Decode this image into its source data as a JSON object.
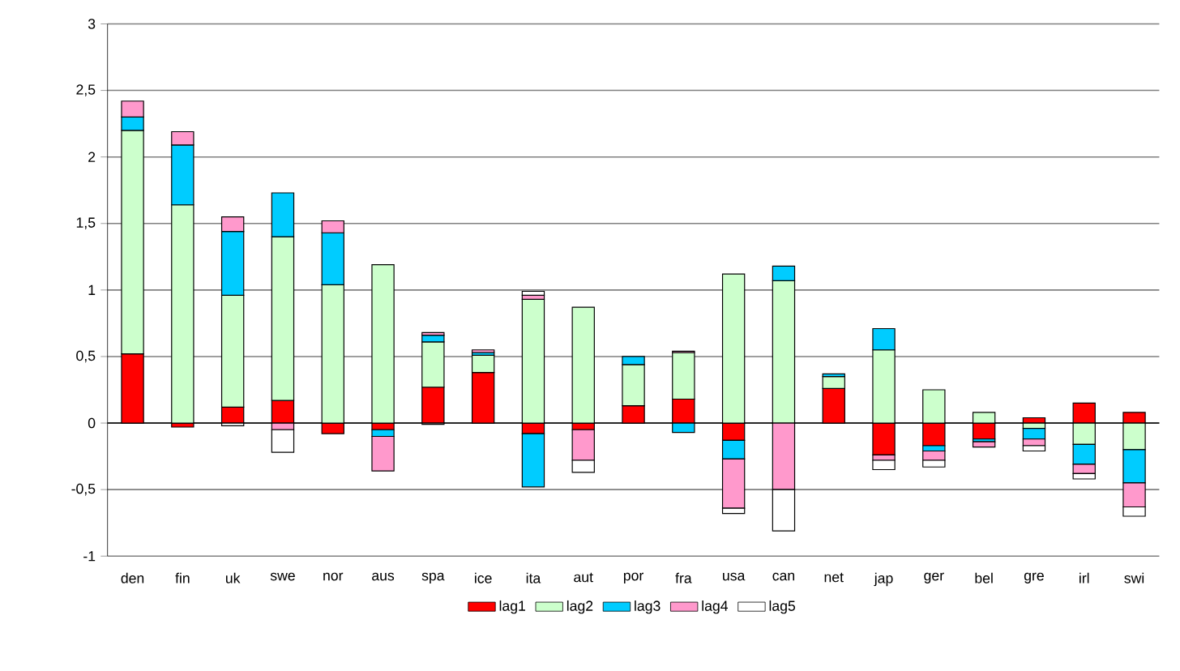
{
  "chart_data": {
    "type": "bar",
    "stacked": true,
    "categories": [
      "den",
      "fin",
      "uk",
      "swe",
      "nor",
      "aus",
      "spa",
      "ice",
      "ita",
      "aut",
      "por",
      "fra",
      "usa",
      "can",
      "net",
      "jap",
      "ger",
      "bel",
      "gre",
      "irl",
      "swi"
    ],
    "series": [
      {
        "name": "lag1",
        "color": "#ff0000",
        "values": [
          0.52,
          -0.03,
          0.12,
          0.17,
          -0.08,
          -0.05,
          0.27,
          0.38,
          -0.08,
          -0.05,
          0.13,
          0.18,
          -0.13,
          null,
          0.26,
          -0.24,
          -0.17,
          -0.12,
          0.04,
          0.15,
          0.08
        ]
      },
      {
        "name": "lag2",
        "color": "#ccffcc",
        "values": [
          1.68,
          1.64,
          0.84,
          1.23,
          1.04,
          1.19,
          0.34,
          0.13,
          0.93,
          0.87,
          0.31,
          0.35,
          1.12,
          1.07,
          0.09,
          0.55,
          0.25,
          0.08,
          -0.04,
          -0.16,
          -0.2
        ]
      },
      {
        "name": "lag3",
        "color": "#00ccff",
        "values": [
          0.1,
          0.45,
          0.48,
          0.33,
          0.39,
          -0.05,
          0.05,
          0.02,
          -0.4,
          null,
          0.06,
          -0.07,
          -0.14,
          0.11,
          0.02,
          0.16,
          -0.04,
          -0.02,
          -0.08,
          -0.15,
          -0.25
        ]
      },
      {
        "name": "lag4",
        "color": "#ff99cc",
        "values": [
          0.12,
          0.1,
          0.11,
          -0.05,
          0.09,
          -0.26,
          0.02,
          0.02,
          0.03,
          -0.23,
          null,
          0.01,
          -0.37,
          -0.5,
          null,
          -0.04,
          -0.07,
          -0.04,
          -0.05,
          -0.07,
          -0.18
        ]
      },
      {
        "name": "lag5",
        "color": "#ffffff",
        "values": [
          null,
          null,
          -0.02,
          -0.17,
          null,
          null,
          -0.01,
          null,
          0.03,
          -0.09,
          null,
          null,
          -0.04,
          -0.31,
          null,
          -0.07,
          -0.05,
          null,
          -0.04,
          -0.04,
          -0.07
        ]
      }
    ],
    "ylim": [
      -1,
      3
    ],
    "yticks": [
      {
        "value": -1,
        "label": "-1"
      },
      {
        "value": -0.5,
        "label": "-0,5"
      },
      {
        "value": 0,
        "label": "0"
      },
      {
        "value": 0.5,
        "label": "0,5"
      },
      {
        "value": 1,
        "label": "1"
      },
      {
        "value": 1.5,
        "label": "1,5"
      },
      {
        "value": 2,
        "label": "2"
      },
      {
        "value": 2.5,
        "label": "2,5"
      },
      {
        "value": 3,
        "label": "3"
      }
    ],
    "grid": "y",
    "legend": "bottom"
  }
}
